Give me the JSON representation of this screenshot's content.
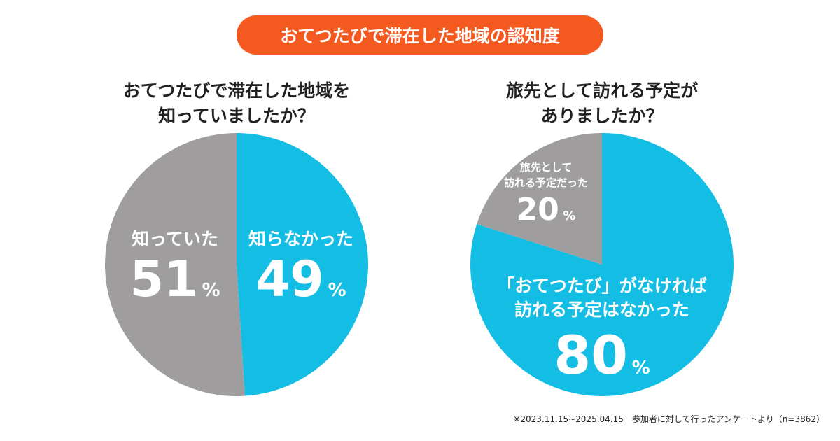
{
  "title": "おてつたびで滞在した地域の認知度",
  "colors": {
    "accent": "#f4591f",
    "blue": "#14bde3",
    "gray": "#a09d9f"
  },
  "chart_data": [
    {
      "type": "pie",
      "title": "おてつたびで滞在した地域を 知っていましたか？",
      "title_lines": [
        "おてつたびで滞在した地域を",
        "知っていましたか？"
      ],
      "slices": [
        {
          "label": "知らなかった",
          "value": 49,
          "unit": "%",
          "color": "#14bde3"
        },
        {
          "label": "知っていた",
          "value": 51,
          "unit": "%",
          "color": "#a09d9f"
        }
      ]
    },
    {
      "type": "pie",
      "title": "旅先として訪れる予定が ありましたか？",
      "title_lines": [
        "旅先として訪れる予定が",
        "ありましたか？"
      ],
      "slices": [
        {
          "label": "「おてつたび」がなければ 訪れる予定はなかった",
          "label_lines": [
            "「おてつたび」がなければ",
            "訪れる予定はなかった"
          ],
          "value": 80,
          "unit": "%",
          "color": "#14bde3"
        },
        {
          "label": "旅先として 訪れる予定だった",
          "label_lines": [
            "旅先として",
            "訪れる予定だった"
          ],
          "value": 20,
          "unit": "%",
          "color": "#a09d9f"
        }
      ]
    }
  ],
  "footnote": "※2023.11.15~2025.04.15　参加者に対して行ったアンケートより（n=3862）"
}
